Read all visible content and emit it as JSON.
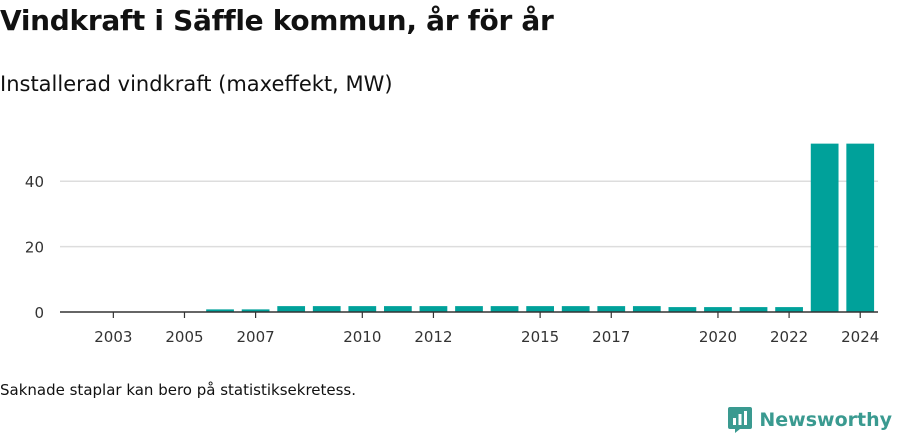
{
  "header": {
    "title": "Vindkraft i Säffle kommun, år för år",
    "subtitle": "Installerad vindkraft (maxeffekt, MW)"
  },
  "footnote": "Saknade staplar kan bero på statistiksekretess.",
  "brand": {
    "name": "Newsworthy",
    "color": "#3a9a90",
    "icon": "bar-chart-icon"
  },
  "chart_data": {
    "type": "bar",
    "bar_color": "#00a19a",
    "categories": [
      "2002",
      "2003",
      "2004",
      "2005",
      "2006",
      "2007",
      "2008",
      "2009",
      "2010",
      "2011",
      "2012",
      "2013",
      "2014",
      "2015",
      "2016",
      "2017",
      "2018",
      "2019",
      "2020",
      "2021",
      "2022",
      "2023",
      "2024"
    ],
    "values": [
      0,
      0,
      0,
      0,
      0.8,
      0.8,
      1.8,
      1.8,
      1.8,
      1.8,
      1.8,
      1.8,
      1.8,
      1.8,
      1.8,
      1.8,
      1.8,
      1.5,
      1.5,
      1.5,
      1.5,
      51.5,
      51.5
    ],
    "x_tick_labels": [
      "2003",
      "2005",
      "2007",
      "2010",
      "2012",
      "2015",
      "2017",
      "2020",
      "2022",
      "2024"
    ],
    "y_ticks": [
      0,
      20,
      40
    ],
    "ylim": [
      0,
      52
    ],
    "grid": true,
    "title": "Vindkraft i Säffle kommun, år för år",
    "ylabel": "Installerad vindkraft (maxeffekt, MW)",
    "xlabel": ""
  }
}
